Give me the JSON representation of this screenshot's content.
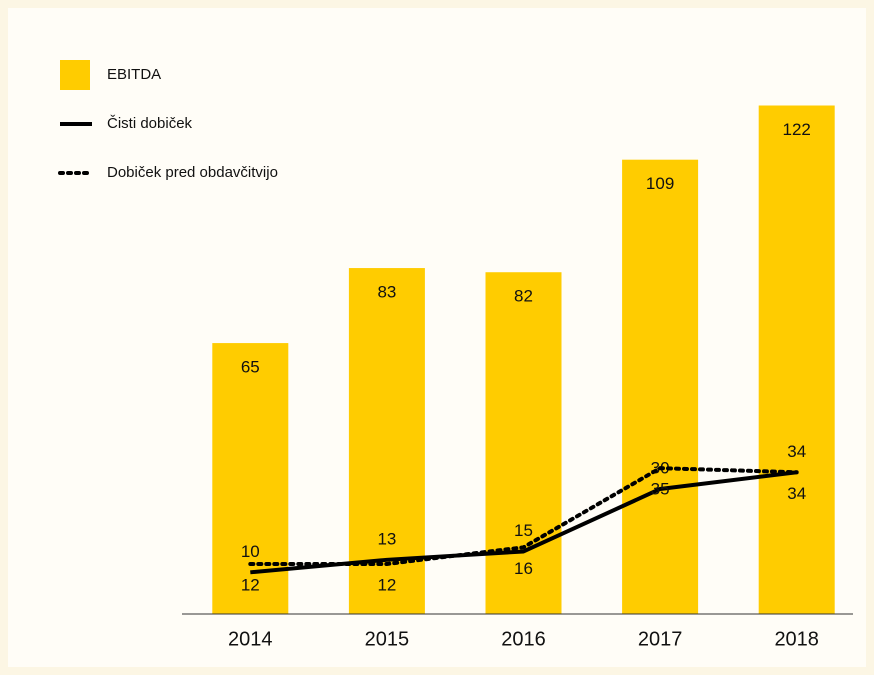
{
  "chart_data": {
    "type": "bar",
    "categories": [
      "2014",
      "2015",
      "2016",
      "2017",
      "2018"
    ],
    "series": [
      {
        "name": "EBITDA",
        "type": "bar",
        "color": "#ffcc00",
        "values": [
          65,
          83,
          82,
          109,
          122
        ]
      },
      {
        "name": "Čisti dobiček",
        "type": "line",
        "color": "#000000",
        "dash": "solid",
        "values": [
          10,
          13,
          15,
          30,
          34
        ]
      },
      {
        "name": "Dobiček pred obdavčitvijo",
        "type": "line",
        "color": "#000000",
        "dash": "dotted",
        "values": [
          12,
          12,
          16,
          35,
          34
        ]
      }
    ],
    "ylim": [
      0,
      125
    ]
  }
}
